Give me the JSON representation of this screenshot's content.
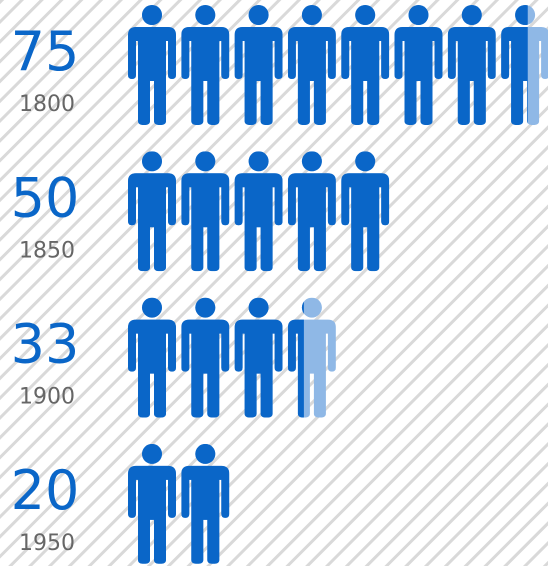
{
  "chart_data": {
    "type": "pictograph",
    "categories": [
      "1800",
      "1850",
      "1900",
      "1950"
    ],
    "values": [
      75,
      50,
      33,
      20
    ],
    "color": "#0a66c8",
    "faded_color": "#8fb8e6",
    "xlim": [
      0,
      80
    ]
  }
}
